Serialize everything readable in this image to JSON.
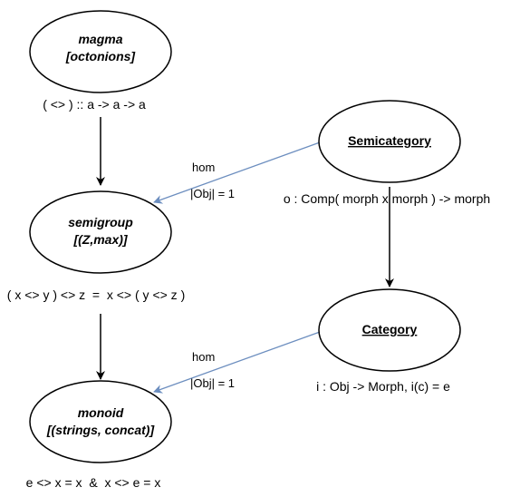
{
  "nodes": {
    "magma": {
      "title": "magma",
      "example": "[octonions]",
      "law": "( <> ) :: a -> a -> a"
    },
    "semigroup": {
      "title": "semigroup",
      "example": "[(Z,max)]",
      "law": "( x <> y ) <> z  =  x <> ( y <> z )"
    },
    "monoid": {
      "title": "monoid",
      "example": "[(strings, concat)]",
      "law": "e <> x = x  &  x <> e = x"
    },
    "semicategory": {
      "title": "Semicategory",
      "law": "o : Comp( morph x morph ) -> morph"
    },
    "category": {
      "title": "Category",
      "law": "i : Obj -> Morph, i(c) = e"
    }
  },
  "edges": {
    "hom1": {
      "label": "hom",
      "condition": "|Obj| = 1"
    },
    "hom2": {
      "label": "hom",
      "condition": "|Obj| = 1"
    }
  },
  "colors": {
    "hom_arrow": "#6c8ebf",
    "inheritance_arrow": "#000000"
  }
}
